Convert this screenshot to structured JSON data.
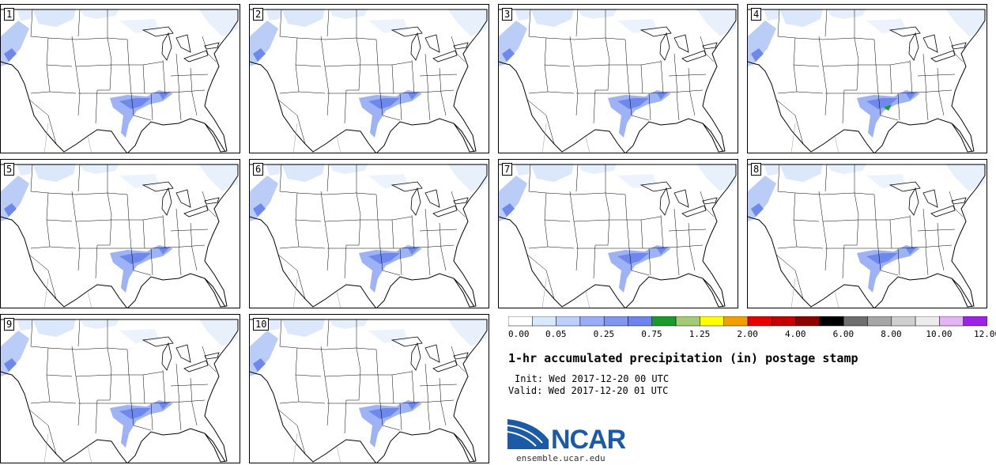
{
  "panels": [
    {
      "label": "1"
    },
    {
      "label": "2"
    },
    {
      "label": "3"
    },
    {
      "label": "4"
    },
    {
      "label": "5"
    },
    {
      "label": "6"
    },
    {
      "label": "7"
    },
    {
      "label": "8"
    },
    {
      "label": "9"
    },
    {
      "label": "10"
    }
  ],
  "colorbar": {
    "colors": [
      "#ffffff",
      "#dae8fc",
      "#bccffc",
      "#9aaef7",
      "#8096f0",
      "#6f83ee",
      "#1a9a2b",
      "#a4c977",
      "#ffff00",
      "#f1a000",
      "#e60000",
      "#c40000",
      "#8c0000",
      "#000000",
      "#6e6e6e",
      "#a6a6a6",
      "#cfcfcf",
      "#ececec",
      "#e3b3f2",
      "#9b22e6"
    ],
    "tick_labels": [
      "0.00",
      "0.05",
      "0.25",
      "0.75",
      "1.25",
      "2.00",
      "4.00",
      "6.00",
      "8.00",
      "10.00",
      "12.00"
    ]
  },
  "title": "1-hr accumulated precipitation (in) postage stamp",
  "init": "Init: Wed 2017-12-20 00 UTC",
  "valid": "Valid: Wed 2017-12-20 01 UTC",
  "logo": {
    "text": "NCAR",
    "url": "ensemble.ucar.edu"
  },
  "colors": {
    "light_precip": "#dbe7fb",
    "med_precip": "#7f97ef",
    "heavy_precip": "#1a9a2b",
    "border": "#000000"
  }
}
